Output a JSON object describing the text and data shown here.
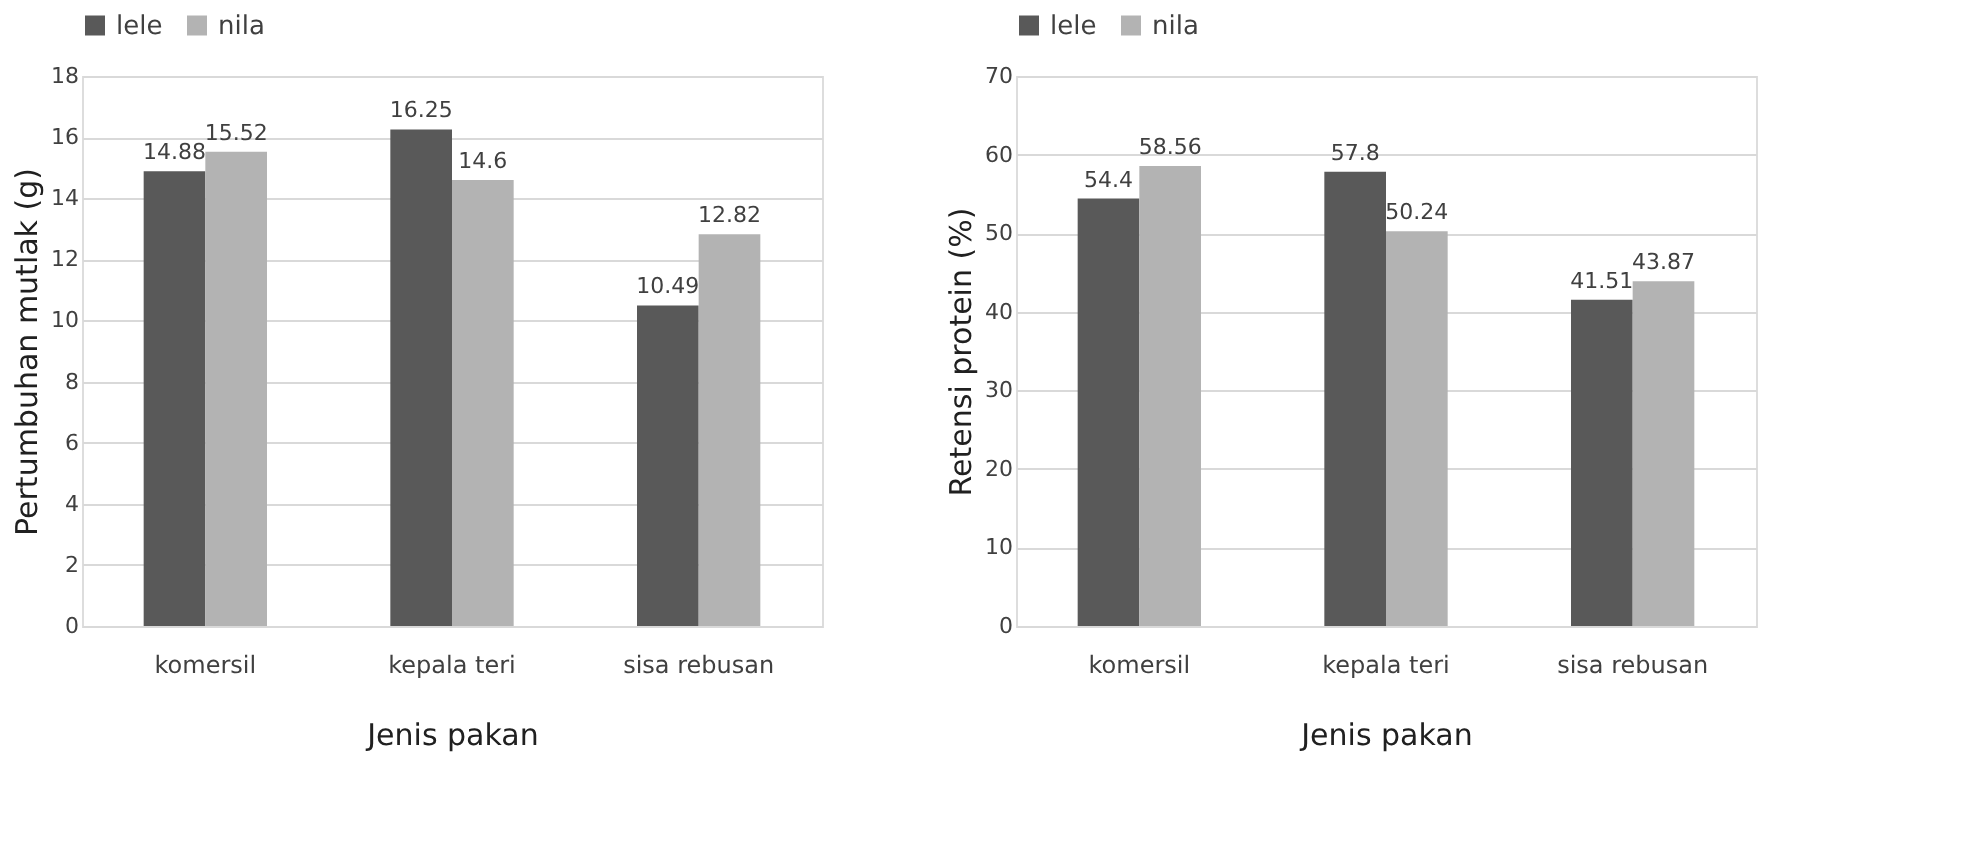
{
  "chart_data": [
    {
      "type": "bar",
      "categories": [
        "komersil",
        "kepala teri",
        "sisa rebusan"
      ],
      "xlabel": "Jenis pakan",
      "ylabel": "Pertumbuhan mutlak (g)",
      "ylim": [
        0,
        18
      ],
      "yticks": [
        0,
        2,
        4,
        6,
        8,
        10,
        12,
        14,
        16,
        18
      ],
      "grid": "y",
      "legend": "top",
      "data_labels": true,
      "series": [
        {
          "name": "lele",
          "color": "#595959",
          "values": [
            14.88,
            16.25,
            10.49
          ]
        },
        {
          "name": "nila",
          "color": "#b3b3b3",
          "values": [
            15.52,
            14.6,
            12.82
          ]
        }
      ]
    },
    {
      "type": "bar",
      "categories": [
        "komersil",
        "kepala teri",
        "sisa rebusan"
      ],
      "xlabel": "Jenis pakan",
      "ylabel": "Retensi protein (%)",
      "ylim": [
        0,
        70
      ],
      "yticks": [
        0,
        10,
        20,
        30,
        40,
        50,
        60,
        70
      ],
      "grid": "y",
      "legend": "top",
      "data_labels": true,
      "series": [
        {
          "name": "lele",
          "color": "#595959",
          "values": [
            54.4,
            57.8,
            41.51
          ]
        },
        {
          "name": "nila",
          "color": "#b3b3b3",
          "values": [
            58.56,
            50.24,
            43.87
          ]
        }
      ]
    }
  ]
}
